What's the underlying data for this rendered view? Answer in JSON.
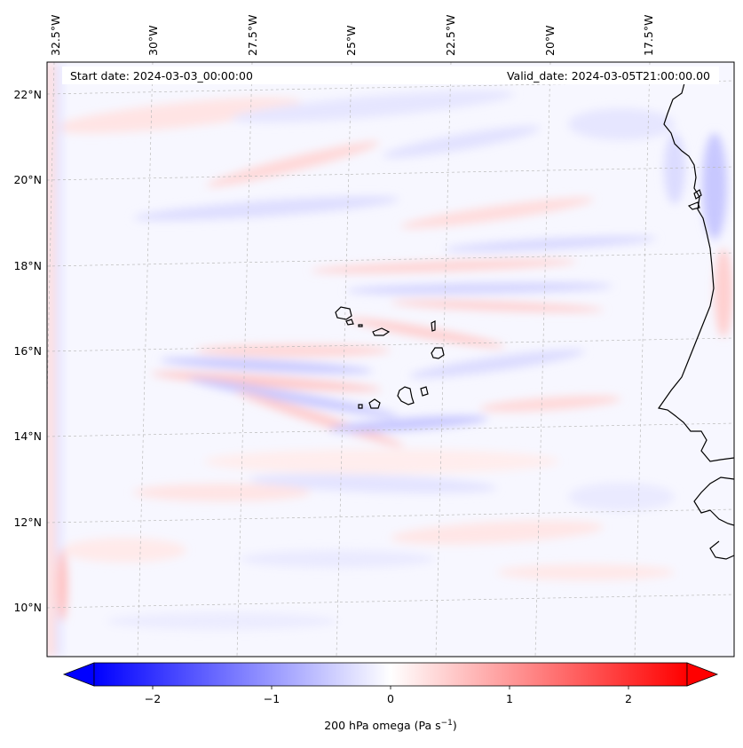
{
  "map": {
    "start_date": "Start date: 2024-03-03_00:00:00",
    "valid_date": "Valid_date: 2024-03-05T21:00:00.00",
    "lon_labels": [
      "32.5°W",
      "30°W",
      "27.5°W",
      "25°W",
      "22.5°W",
      "20°W",
      "17.5°W"
    ],
    "lat_labels": [
      "22°N",
      "20°N",
      "18°N",
      "16°N",
      "14°N",
      "12°N",
      "10°N"
    ],
    "field_colors": {
      "negative": "#0000ff",
      "zero": "#ffffff",
      "positive": "#ff0000"
    }
  },
  "colorbar": {
    "label_text": "200 hPa omega (Pa s",
    "label_exp": "−1",
    "label_close": ")",
    "ticks": [
      "−2",
      "−1",
      "0",
      "1",
      "2"
    ],
    "range": [
      -2.5,
      2.5
    ],
    "extend": "both"
  }
}
